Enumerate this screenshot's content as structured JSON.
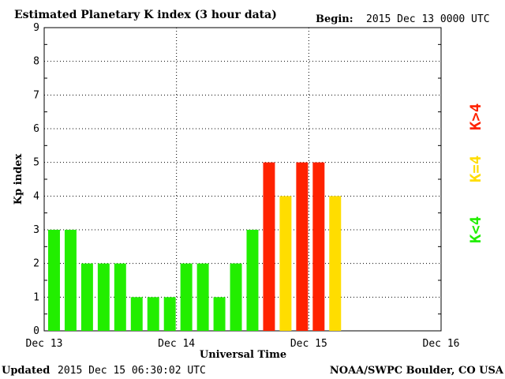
{
  "header": {
    "title": "Estimated Planetary K index (3 hour data)",
    "begin_label": "Begin:",
    "begin_value": "2015 Dec 13 0000 UTC"
  },
  "footer": {
    "updated_label": "Updated",
    "updated_value": "2015 Dec 15 06:30:02 UTC",
    "credit": "NOAA/SWPC Boulder, CO USA"
  },
  "legend": {
    "high": "K>4",
    "equal": "K=4",
    "low": "K<4"
  },
  "colors": {
    "low": "#22ee00",
    "equal": "#ffdd00",
    "high": "#ff2200"
  },
  "chart_data": {
    "type": "bar",
    "xlabel": "Universal Time",
    "ylabel": "Kp index",
    "ylim": [
      0,
      9
    ],
    "yticks": [
      "0",
      "1",
      "2",
      "3",
      "4",
      "5",
      "6",
      "7",
      "8",
      "9"
    ],
    "xticks": [
      "Dec 13",
      "Dec 14",
      "Dec 15",
      "Dec 16"
    ],
    "slots_per_day": 8,
    "values": [
      3,
      3,
      2,
      2,
      2,
      1,
      1,
      1,
      2,
      2,
      1,
      2,
      3,
      5,
      4,
      5,
      5,
      4
    ],
    "grid": true,
    "bar_color_rule": "green for K<4, yellow for K=4, red for K>4"
  }
}
